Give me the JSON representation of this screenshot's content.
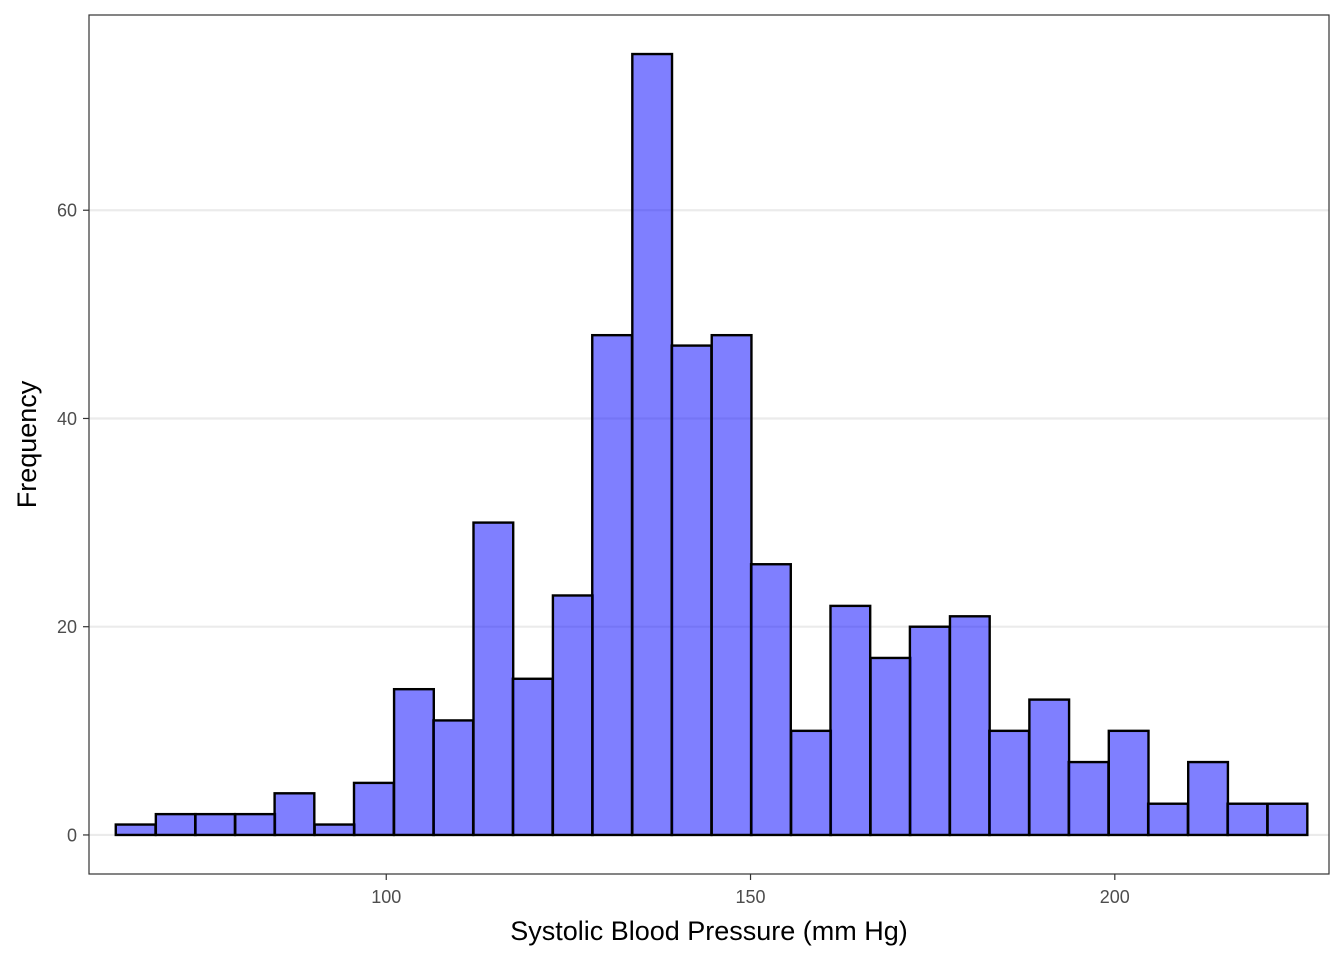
{
  "chart_data": {
    "type": "bar",
    "subtype": "histogram",
    "title": "",
    "xlabel": "Systolic Blood Pressure (mm Hg)",
    "ylabel": "Frequency",
    "xlim": [
      59.2,
      229.4
    ],
    "ylim": [
      -3.75,
      78.75
    ],
    "x_ticks": [
      100,
      150,
      200
    ],
    "y_ticks": [
      0,
      20,
      40,
      60
    ],
    "x_tick_labels": [
      "100",
      "150",
      "200"
    ],
    "y_tick_labels": [
      "0",
      "20",
      "40",
      "60"
    ],
    "grid": "horizontal major only",
    "legend": "none",
    "bin_width": 5.45,
    "bin_start": 62.9,
    "bin_centers": [
      65.6,
      71.1,
      76.5,
      82.0,
      87.4,
      92.9,
      98.3,
      103.8,
      109.2,
      114.7,
      120.1,
      125.6,
      131.0,
      136.5,
      141.9,
      147.4,
      152.8,
      158.3,
      163.7,
      169.2,
      174.6,
      180.1,
      185.5,
      191.0,
      196.4,
      201.9,
      207.3,
      212.8,
      218.2,
      223.7
    ],
    "values": [
      1,
      2,
      2,
      2,
      4,
      1,
      5,
      14,
      11,
      30,
      15,
      23,
      48,
      75,
      47,
      48,
      26,
      10,
      22,
      17,
      20,
      21,
      10,
      13,
      7,
      10,
      3,
      7,
      3,
      3
    ],
    "colors": {
      "bar_fill": "#0000ff",
      "bar_fill_opacity": 0.5,
      "bar_stroke": "#000000",
      "grid": "#ebebeb",
      "panel_border": "#333333",
      "tick_label": "#4d4d4d"
    }
  }
}
